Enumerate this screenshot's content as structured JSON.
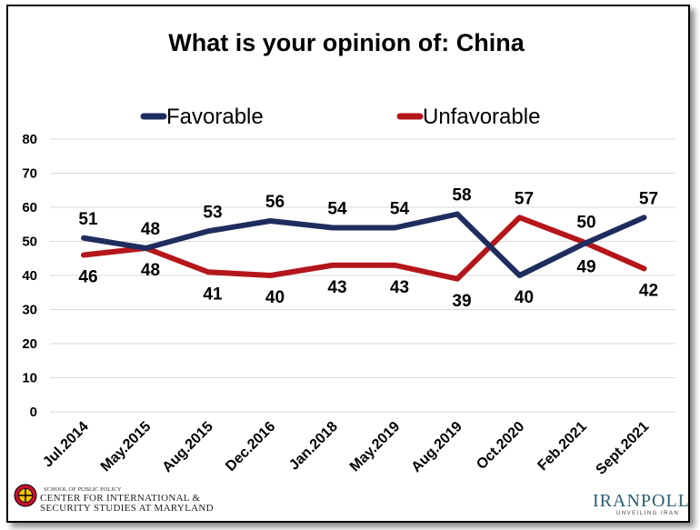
{
  "chart_data": {
    "type": "line",
    "title": "What is your opinion of: China",
    "categories": [
      "Jul.2014",
      "May.2015",
      "Aug.2015",
      "Dec.2016",
      "Jan.2018",
      "May.2019",
      "Aug.2019",
      "Oct.2020",
      "Feb.2021",
      "Sept.2021"
    ],
    "series": [
      {
        "name": "Favorable",
        "color": "#1f2d5e",
        "values": [
          51,
          48,
          53,
          56,
          54,
          54,
          58,
          40,
          49,
          57
        ]
      },
      {
        "name": "Unfavorable",
        "color": "#b5161b",
        "values": [
          46,
          48,
          41,
          40,
          43,
          43,
          39,
          57,
          50,
          42
        ]
      }
    ],
    "data_labels": {
      "Favorable": [
        "51",
        "48",
        "53",
        "56",
        "54",
        "54",
        "58",
        "40",
        "49",
        "57"
      ],
      "Unfavorable": [
        "46",
        "48",
        "41",
        "40",
        "43",
        "43",
        "39",
        "57",
        "50",
        "42"
      ]
    },
    "ylim": [
      0,
      80
    ],
    "yticks": [
      "0",
      "10",
      "20",
      "30",
      "40",
      "50",
      "60",
      "70",
      "80"
    ],
    "grid": true,
    "legend": "top"
  },
  "logos": {
    "cissm_small": "SCHOOL OF PUBLIC POLICY",
    "cissm_line1": "CENTER FOR INTERNATIONAL &",
    "cissm_line2": "SECURITY STUDIES AT MARYLAND",
    "iranpoll_main": "IRANPOLL",
    "iranpoll_sub": "UNVEILING IRAN"
  }
}
